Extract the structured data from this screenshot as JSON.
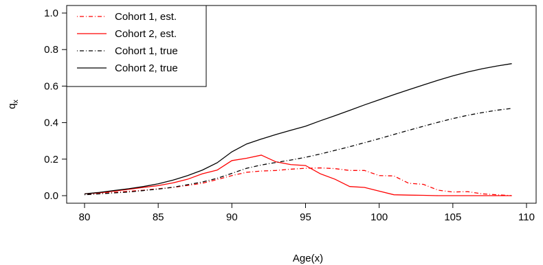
{
  "chart_data": {
    "type": "line",
    "xlabel": "Age(x)",
    "ylabel": "q",
    "ylabel_subscript": "x",
    "xlim": [
      80,
      110
    ],
    "ylim": [
      0,
      1.0
    ],
    "xticks": [
      80,
      85,
      90,
      95,
      100,
      105,
      110
    ],
    "yticks": [
      "0.0",
      "0.2",
      "0.4",
      "0.6",
      "0.8",
      "1.0"
    ],
    "grid": false,
    "legend_position": "top-left",
    "x": [
      80,
      81,
      82,
      83,
      84,
      85,
      86,
      87,
      88,
      89,
      90,
      91,
      92,
      93,
      94,
      95,
      96,
      97,
      98,
      99,
      100,
      101,
      102,
      103,
      104,
      105,
      106,
      107,
      108,
      109
    ],
    "series": [
      {
        "name": "Cohort 1, est.",
        "color": "#ff0000",
        "dash": "dotdash",
        "values": [
          0.008,
          0.012,
          0.018,
          0.024,
          0.03,
          0.038,
          0.045,
          0.056,
          0.068,
          0.088,
          0.11,
          0.128,
          0.135,
          0.138,
          0.145,
          0.15,
          0.152,
          0.148,
          0.138,
          0.138,
          0.11,
          0.108,
          0.068,
          0.062,
          0.03,
          0.02,
          0.022,
          0.01,
          0.005,
          0.0
        ]
      },
      {
        "name": "Cohort 2, est.",
        "color": "#ff0000",
        "dash": "solid",
        "values": [
          0.01,
          0.015,
          0.025,
          0.035,
          0.045,
          0.055,
          0.07,
          0.09,
          0.12,
          0.14,
          0.192,
          0.205,
          0.222,
          0.185,
          0.17,
          0.165,
          0.12,
          0.09,
          0.05,
          0.045,
          0.025,
          0.005,
          0.003,
          0.002,
          0.0,
          0.0,
          0.0,
          0.0,
          0.0,
          0.0
        ]
      },
      {
        "name": "Cohort 1, true",
        "color": "#000000",
        "dash": "dotdash",
        "values": [
          0.005,
          0.01,
          0.015,
          0.02,
          0.028,
          0.036,
          0.046,
          0.06,
          0.075,
          0.095,
          0.122,
          0.15,
          0.168,
          0.182,
          0.195,
          0.21,
          0.228,
          0.248,
          0.268,
          0.29,
          0.312,
          0.335,
          0.358,
          0.38,
          0.402,
          0.422,
          0.44,
          0.455,
          0.468,
          0.478
        ]
      },
      {
        "name": "Cohort 2, true",
        "color": "#000000",
        "dash": "solid",
        "values": [
          0.01,
          0.018,
          0.028,
          0.038,
          0.05,
          0.065,
          0.085,
          0.11,
          0.14,
          0.18,
          0.24,
          0.283,
          0.31,
          0.335,
          0.358,
          0.38,
          0.41,
          0.438,
          0.467,
          0.497,
          0.525,
          0.553,
          0.58,
          0.606,
          0.632,
          0.656,
          0.677,
          0.695,
          0.71,
          0.723
        ]
      }
    ]
  }
}
